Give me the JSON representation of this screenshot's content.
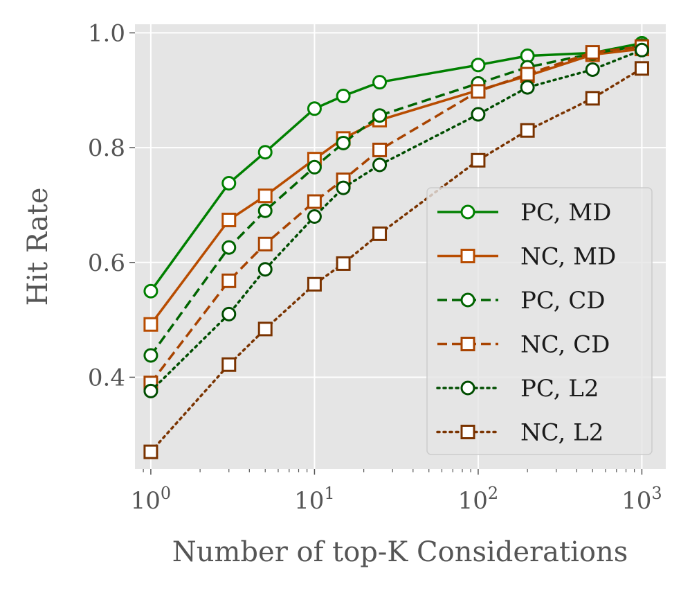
{
  "chart_data": {
    "type": "line",
    "title": "",
    "xlabel": "Number of top-K Considerations",
    "ylabel": "Hit Rate",
    "x_scale": "log",
    "xlim": [
      0.8,
      1400
    ],
    "ylim": [
      0.24,
      1.015
    ],
    "grid": true,
    "background": "#e5e5e5",
    "x_ticks": [
      {
        "value": 1,
        "base": "10",
        "exp": "0"
      },
      {
        "value": 10,
        "base": "10",
        "exp": "1"
      },
      {
        "value": 100,
        "base": "10",
        "exp": "2"
      },
      {
        "value": 1000,
        "base": "10",
        "exp": "3"
      }
    ],
    "y_ticks": [
      {
        "value": 0.4,
        "label": "0.4"
      },
      {
        "value": 0.6,
        "label": "0.6"
      },
      {
        "value": 0.8,
        "label": "0.8"
      },
      {
        "value": 1.0,
        "label": "1.0"
      }
    ],
    "x": [
      1,
      3,
      5,
      10,
      15,
      25,
      100,
      200,
      500,
      1000
    ],
    "legend_position": "lower-right",
    "series": [
      {
        "name": "PC, MD",
        "color": "#008000",
        "dash": "solid",
        "marker": "circle",
        "values": [
          0.55,
          0.738,
          0.792,
          0.868,
          0.89,
          0.914,
          0.944,
          0.96,
          0.965,
          0.982
        ]
      },
      {
        "name": "NC, MD",
        "color": "#b84c00",
        "dash": "solid",
        "marker": "square",
        "values": [
          0.492,
          0.674,
          0.716,
          0.78,
          0.816,
          0.848,
          0.9,
          0.925,
          0.962,
          0.972
        ]
      },
      {
        "name": "PC, CD",
        "color": "#006400",
        "dash": "dashed",
        "marker": "circle",
        "values": [
          0.438,
          0.626,
          0.69,
          0.766,
          0.808,
          0.856,
          0.912,
          0.94,
          0.964,
          0.978
        ]
      },
      {
        "name": "NC, CD",
        "color": "#a84300",
        "dash": "dashed",
        "marker": "square",
        "values": [
          0.39,
          0.568,
          0.632,
          0.706,
          0.744,
          0.796,
          0.898,
          0.928,
          0.966,
          0.976
        ]
      },
      {
        "name": "PC, L2",
        "color": "#004d00",
        "dash": "dotted",
        "marker": "circle",
        "values": [
          0.376,
          0.51,
          0.588,
          0.68,
          0.73,
          0.77,
          0.858,
          0.905,
          0.936,
          0.97
        ]
      },
      {
        "name": "NC, L2",
        "color": "#7a3300",
        "dash": "dotted",
        "marker": "square",
        "values": [
          0.27,
          0.422,
          0.484,
          0.562,
          0.598,
          0.65,
          0.778,
          0.83,
          0.886,
          0.938
        ]
      }
    ]
  }
}
